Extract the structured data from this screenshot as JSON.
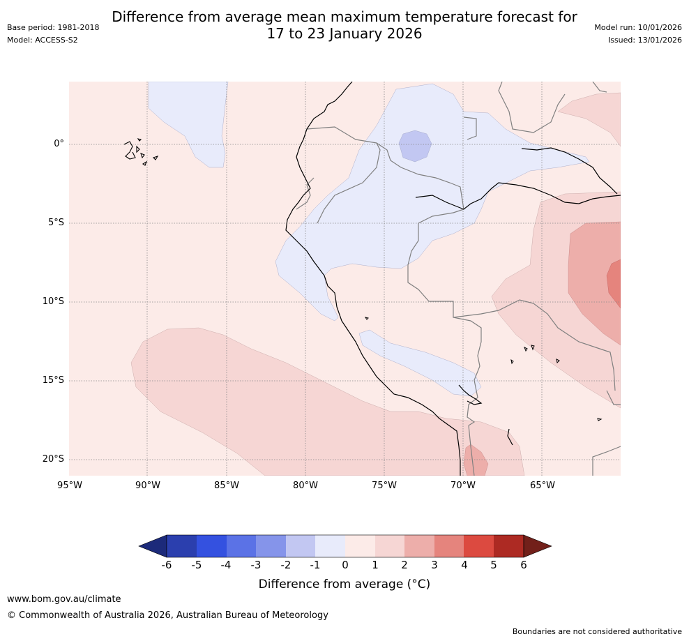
{
  "title": {
    "line1": "Difference from average mean maximum temperature forecast for",
    "line2": "17 to 23 January 2026"
  },
  "meta_left": {
    "base_period": "Base period: 1981-2018",
    "model": "Model: ACCESS-S2"
  },
  "meta_right": {
    "model_run": "Model run: 10/01/2026",
    "issued": "Issued: 13/01/2026"
  },
  "map": {
    "lon_labels": [
      "95°W",
      "90°W",
      "85°W",
      "80°W",
      "75°W",
      "70°W",
      "65°W"
    ],
    "lat_labels": [
      "0°",
      "5°S",
      "10°S",
      "15°S",
      "20°S"
    ],
    "colors": {
      "background": "#fcebe8",
      "neg1": "#e8ebfb",
      "neg2": "#c2c7f2",
      "pos1_2": "#f6d6d4",
      "pos2_3": "#edaeaa",
      "pos3_4": "#e5847d",
      "gridline": "#888888",
      "coast": "#000000",
      "border": "#808080"
    }
  },
  "colorbar": {
    "ticks": [
      "-6",
      "-5",
      "-4",
      "-3",
      "-2",
      "-1",
      "0",
      "1",
      "2",
      "3",
      "4",
      "5",
      "6"
    ],
    "colors": [
      "#1c2a7a",
      "#2b3fae",
      "#3451e0",
      "#5b72e6",
      "#8594ea",
      "#c2c7f2",
      "#e8ebfb",
      "#fcebe8",
      "#f6d6d4",
      "#edaeaa",
      "#e5847d",
      "#dc4a40",
      "#ad2a23",
      "#72201a"
    ],
    "label": "Difference from average (°C)"
  },
  "footer": {
    "url": "www.bom.gov.au/climate",
    "copyright": "© Commonwealth of Australia 2026, Australian Bureau of Meteorology",
    "disclaimer": "Boundaries are not considered authoritative"
  }
}
